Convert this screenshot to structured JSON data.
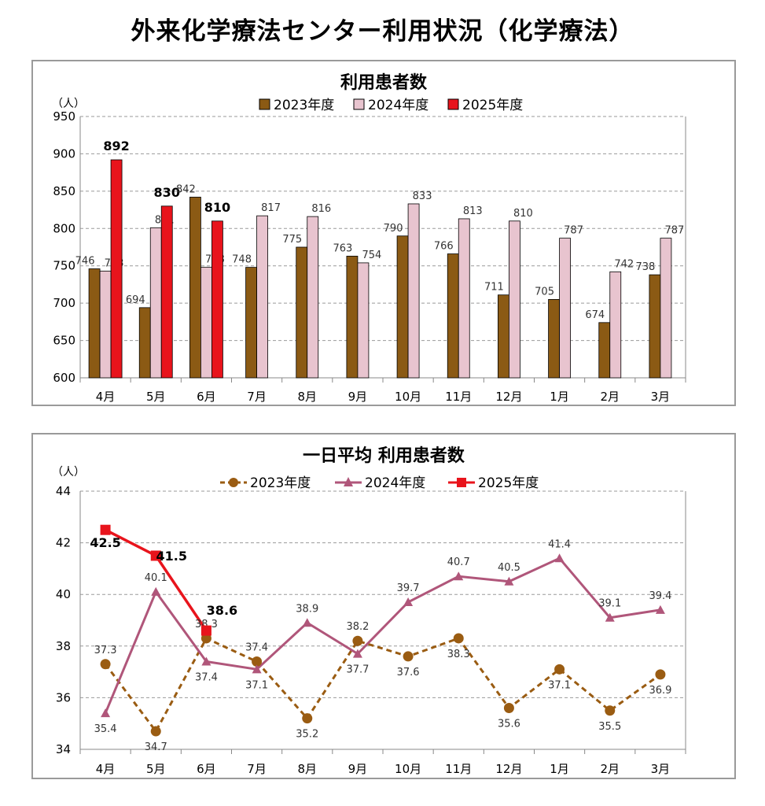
{
  "page_title": "外来化学療法センター利用状況（化学療法）",
  "colors": {
    "s2023_bar": "#8B5A14",
    "s2024_bar": "#E8C4CF",
    "s2025_bar": "#E8141C",
    "s2023_line": "#9A5C12",
    "s2024_line": "#B0567A",
    "s2025_line": "#E8141C",
    "grid": "#9a9a9a"
  },
  "chart_data": [
    {
      "type": "bar",
      "title": "利用患者数",
      "unit_label": "（人）",
      "categories": [
        "4月",
        "5月",
        "6月",
        "7月",
        "8月",
        "9月",
        "10月",
        "11月",
        "12月",
        "1月",
        "2月",
        "3月"
      ],
      "series": [
        {
          "name": "2023年度",
          "values": [
            746,
            694,
            842,
            748,
            775,
            763,
            790,
            766,
            711,
            705,
            674,
            738
          ]
        },
        {
          "name": "2024年度",
          "values": [
            743,
            801,
            748,
            817,
            816,
            754,
            833,
            813,
            810,
            787,
            742,
            787
          ]
        },
        {
          "name": "2025年度",
          "values": [
            892,
            830,
            810,
            null,
            null,
            null,
            null,
            null,
            null,
            null,
            null,
            null
          ]
        }
      ],
      "ylim": [
        600,
        950
      ],
      "yticks": [
        600,
        650,
        700,
        750,
        800,
        850,
        900,
        950
      ],
      "grid": true,
      "legend": "top"
    },
    {
      "type": "line",
      "title": "一日平均 利用患者数",
      "unit_label": "（人）",
      "categories": [
        "4月",
        "5月",
        "6月",
        "7月",
        "8月",
        "9月",
        "10月",
        "11月",
        "12月",
        "1月",
        "2月",
        "3月"
      ],
      "series": [
        {
          "name": "2023年度",
          "values": [
            37.3,
            34.7,
            38.3,
            37.4,
            35.2,
            38.2,
            37.6,
            38.3,
            35.6,
            37.1,
            35.5,
            36.9
          ]
        },
        {
          "name": "2024年度",
          "values": [
            35.4,
            40.1,
            37.4,
            37.1,
            38.9,
            37.7,
            39.7,
            40.7,
            40.5,
            41.4,
            39.1,
            39.4
          ]
        },
        {
          "name": "2025年度",
          "values": [
            42.5,
            41.5,
            38.6,
            null,
            null,
            null,
            null,
            null,
            null,
            null,
            null,
            null
          ]
        }
      ],
      "ylim": [
        34,
        44
      ],
      "yticks": [
        34,
        36,
        38,
        40,
        42,
        44
      ],
      "grid": true,
      "legend": "top"
    }
  ]
}
